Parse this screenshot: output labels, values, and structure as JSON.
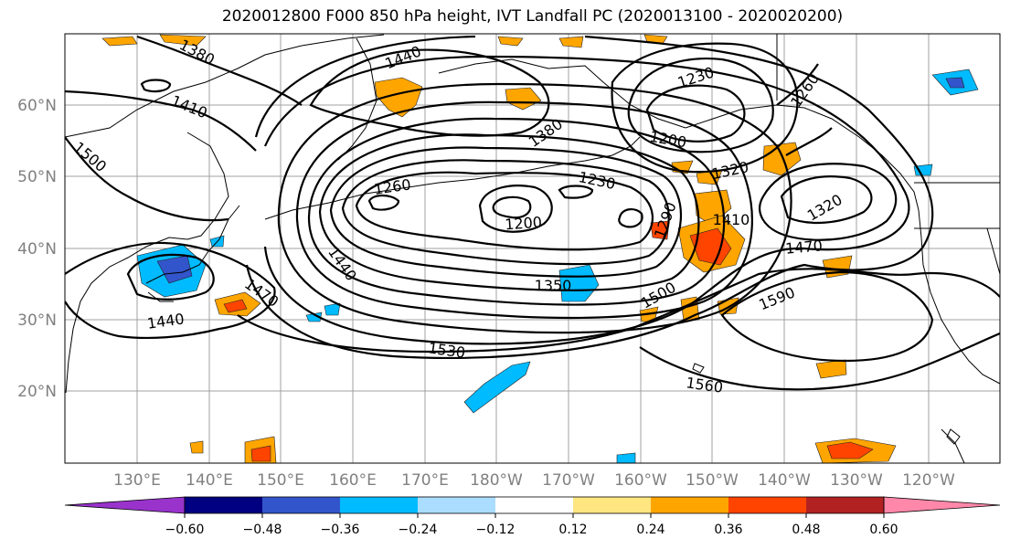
{
  "title": "2020012800 F000 850 hPa height, IVT Landfall PC (2020013100 - 2020020200)",
  "lat_labels": [
    "60°N",
    "50°N",
    "40°N",
    "30°N",
    "20°N"
  ],
  "lon_labels": [
    "130°E",
    "140°E",
    "150°E",
    "160°E",
    "170°E",
    "180°W",
    "170°W",
    "160°W",
    "150°W",
    "140°W",
    "130°W",
    "120°W"
  ],
  "contour_labels": [
    "1380",
    "1440",
    "1230",
    "1260",
    "1410",
    "1380",
    "1200",
    "1500",
    "1230",
    "1260",
    "1320",
    "1200",
    "1290",
    "1410",
    "1320",
    "1440",
    "1470",
    "1350",
    "1440",
    "1470",
    "1500",
    "1590",
    "1530",
    "1560"
  ],
  "colorbar": {
    "colors": [
      "#9933cc",
      "#000080",
      "#3355cc",
      "#00bbff",
      "#aaddff",
      "#ffffff",
      "#ffe680",
      "#ffa500",
      "#ff4400",
      "#b22222",
      "#ff88aa"
    ],
    "tick_labels": [
      "−0.60",
      "−0.48",
      "−0.36",
      "−0.24",
      "−0.12",
      "0.12",
      "0.24",
      "0.36",
      "0.48",
      "0.60"
    ]
  }
}
